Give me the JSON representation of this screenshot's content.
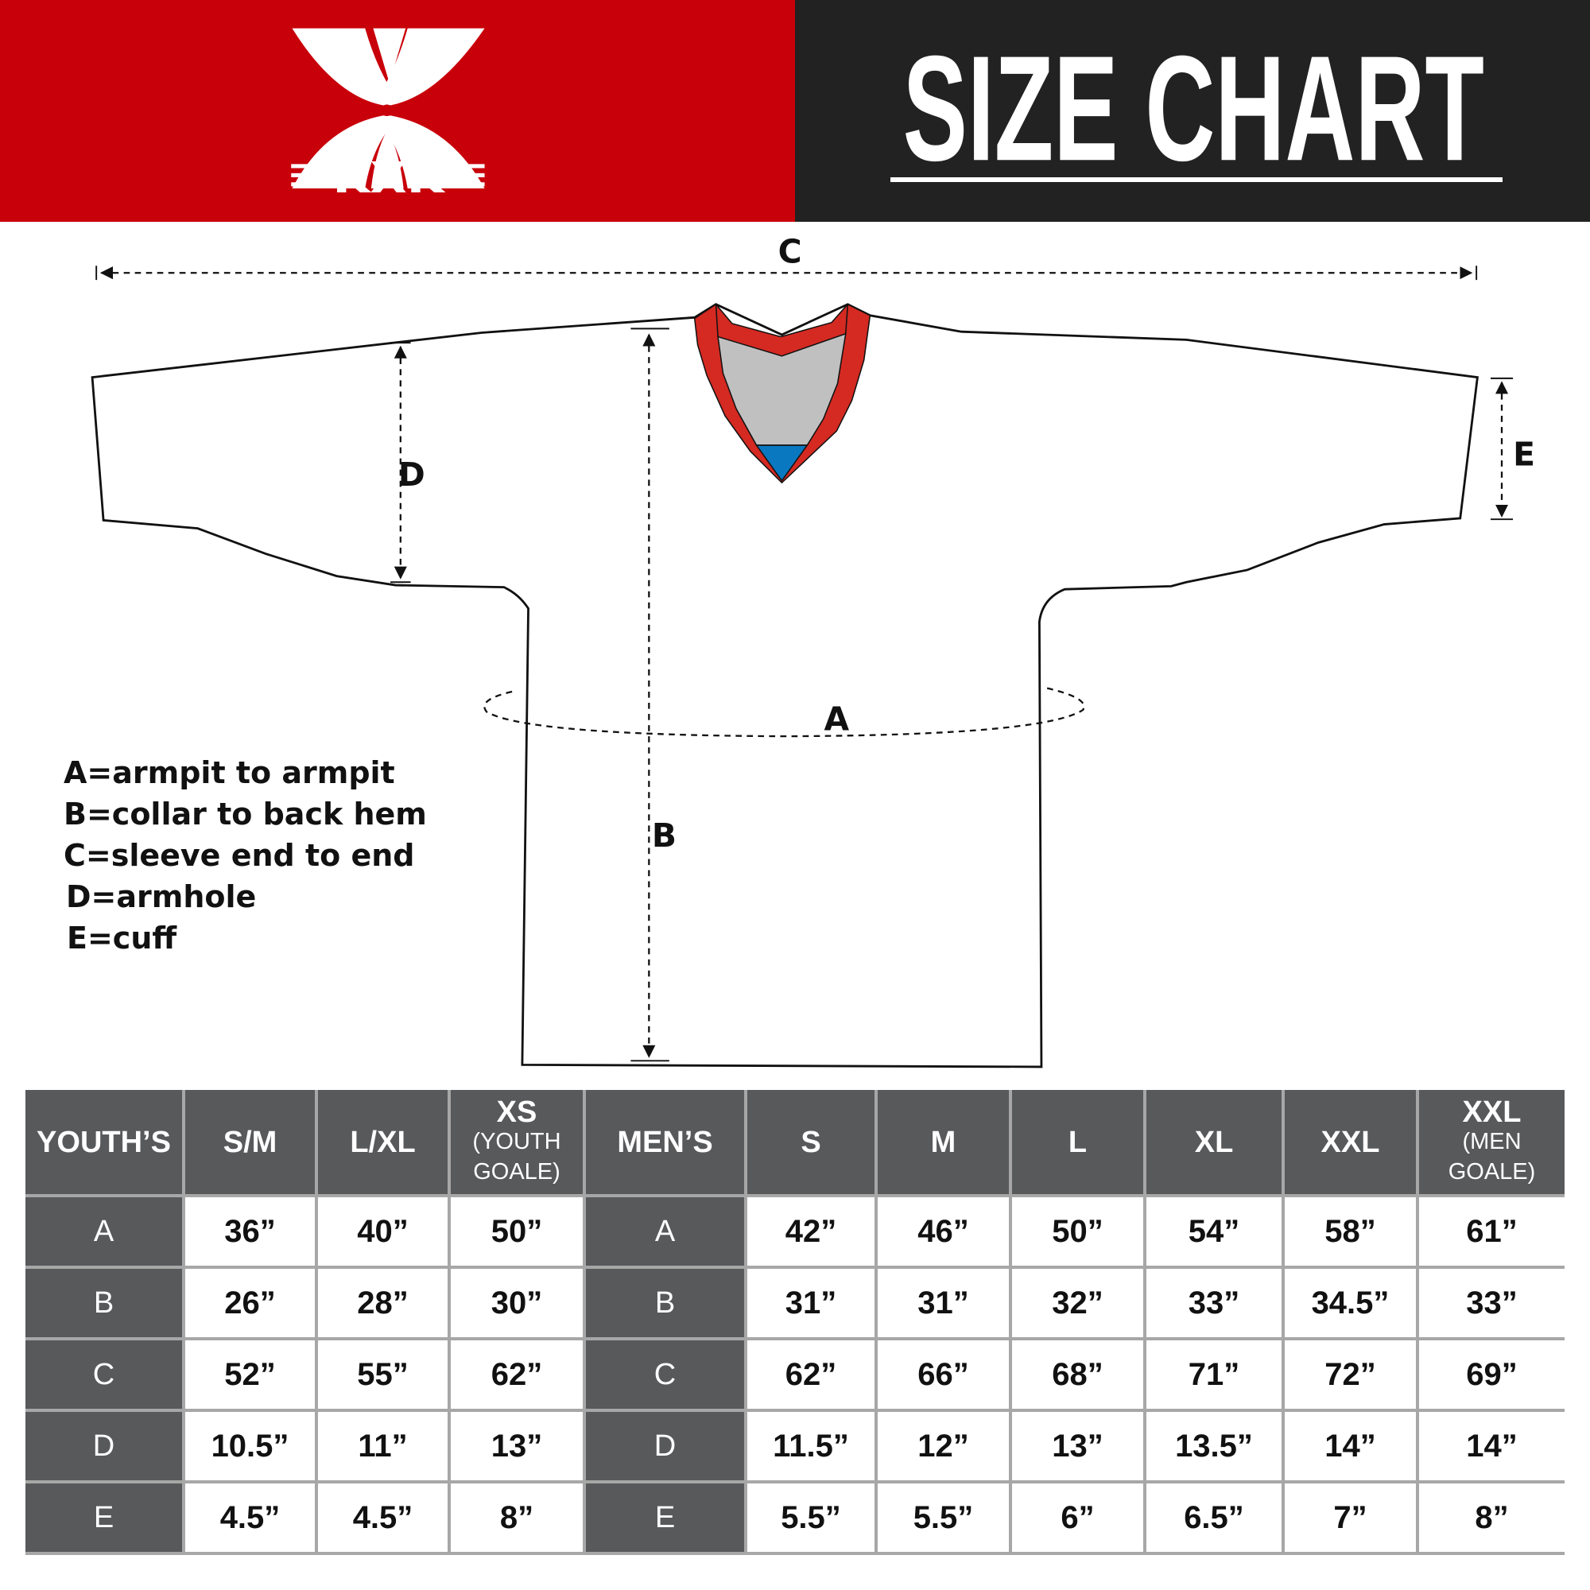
{
  "brand": {
    "logo_text": "KXK",
    "color_red": "#c8000a",
    "color_dark": "#222222"
  },
  "header": {
    "title": "SIZE CHART"
  },
  "diagram": {
    "labels": {
      "A": "A",
      "B": "B",
      "C": "C",
      "D": "D",
      "E": "E"
    },
    "colors": {
      "collar": "#d42a22",
      "collar_inner": "#c0c0c0",
      "collar_tip": "#0a78c0"
    }
  },
  "legend": [
    "A=armpit to armpit",
    "B=collar to back hem",
    "C=sleeve end to end",
    "D=armhole",
    "E=cuff"
  ],
  "table": {
    "youth_header": "YOUTH’S",
    "men_header": "MEN’S",
    "youth_sizes": [
      {
        "size": "S/M",
        "note": ""
      },
      {
        "size": "L/XL",
        "note": ""
      },
      {
        "size": "XS",
        "note_line1": "(YOUTH",
        "note_line2": "GOALE)"
      }
    ],
    "men_sizes": [
      {
        "size": "S"
      },
      {
        "size": "M"
      },
      {
        "size": "L"
      },
      {
        "size": "XL"
      },
      {
        "size": "XXL"
      },
      {
        "size": "XXL",
        "note_line1": "(MEN",
        "note_line2": "GOALE)"
      }
    ],
    "rows": [
      {
        "key": "A",
        "youth": [
          "36”",
          "40”",
          "50”"
        ],
        "men": [
          "42”",
          "46”",
          "50”",
          "54”",
          "58”",
          "61”"
        ]
      },
      {
        "key": "B",
        "youth": [
          "26”",
          "28”",
          "30”"
        ],
        "men": [
          "31”",
          "31”",
          "32”",
          "33”",
          "34.5”",
          "33”"
        ]
      },
      {
        "key": "C",
        "youth": [
          "52”",
          "55”",
          "62”"
        ],
        "men": [
          "62”",
          "66”",
          "68”",
          "71”",
          "72”",
          "69”"
        ]
      },
      {
        "key": "D",
        "youth": [
          "10.5”",
          "11”",
          "13”"
        ],
        "men": [
          "11.5”",
          "12”",
          "13”",
          "13.5”",
          "14”",
          "14”"
        ]
      },
      {
        "key": "E",
        "youth": [
          "4.5”",
          "4.5”",
          "8”"
        ],
        "men": [
          "5.5”",
          "5.5”",
          "6”",
          "6.5”",
          "7”",
          "8”"
        ]
      }
    ]
  }
}
